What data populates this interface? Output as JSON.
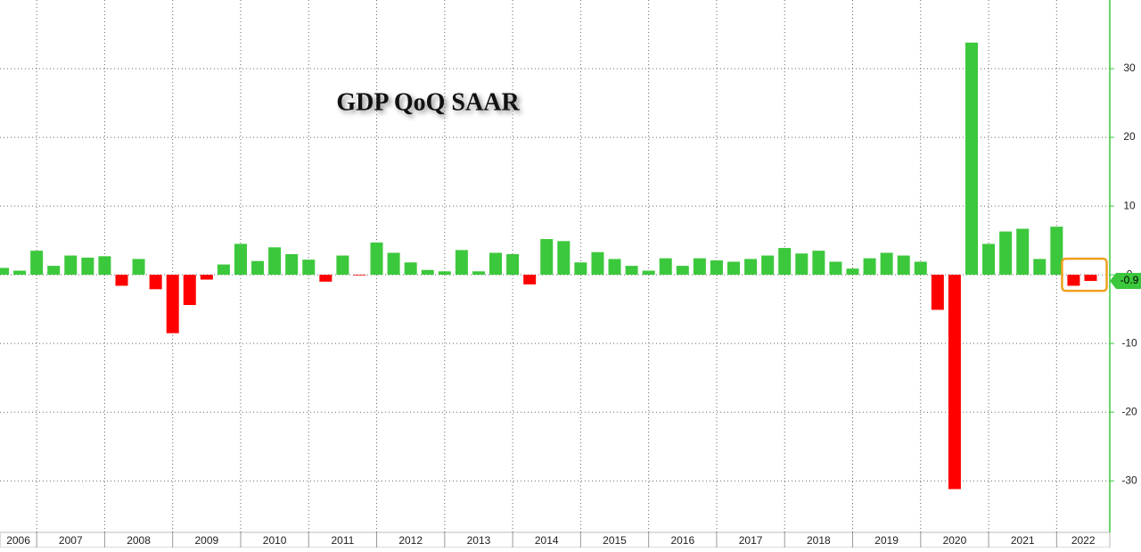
{
  "chart_data": {
    "type": "bar",
    "title": "GDP QoQ SAAR",
    "xticks": [
      "2006",
      "2007",
      "2008",
      "2009",
      "2010",
      "2011",
      "2012",
      "2013",
      "2014",
      "2015",
      "2016",
      "2017",
      "2018",
      "2019",
      "2020",
      "2021",
      "2022"
    ],
    "values": [
      1.0,
      0.6,
      3.5,
      1.3,
      2.8,
      2.5,
      2.7,
      -1.6,
      2.3,
      -2.1,
      -8.5,
      -4.4,
      -0.7,
      1.5,
      4.5,
      2.0,
      4.0,
      3.0,
      2.2,
      -1.0,
      2.8,
      -0.1,
      4.7,
      3.2,
      1.8,
      0.7,
      0.5,
      3.6,
      0.5,
      3.2,
      3.0,
      -1.4,
      5.2,
      4.9,
      1.8,
      3.3,
      2.3,
      1.3,
      0.6,
      2.4,
      1.3,
      2.4,
      2.1,
      1.9,
      2.3,
      2.8,
      3.9,
      3.1,
      3.5,
      1.9,
      0.9,
      2.4,
      3.2,
      2.8,
      1.9,
      -5.1,
      -31.2,
      33.8,
      4.5,
      6.3,
      6.7,
      2.3,
      7.0,
      -1.6,
      -0.9
    ],
    "positive_color": "#3cc83c",
    "negative_color": "#ff0000",
    "ylim": [
      -37.5,
      40
    ],
    "yticks": [
      -30,
      -20,
      -10,
      0,
      10,
      20,
      30
    ],
    "grid": true
  }
}
